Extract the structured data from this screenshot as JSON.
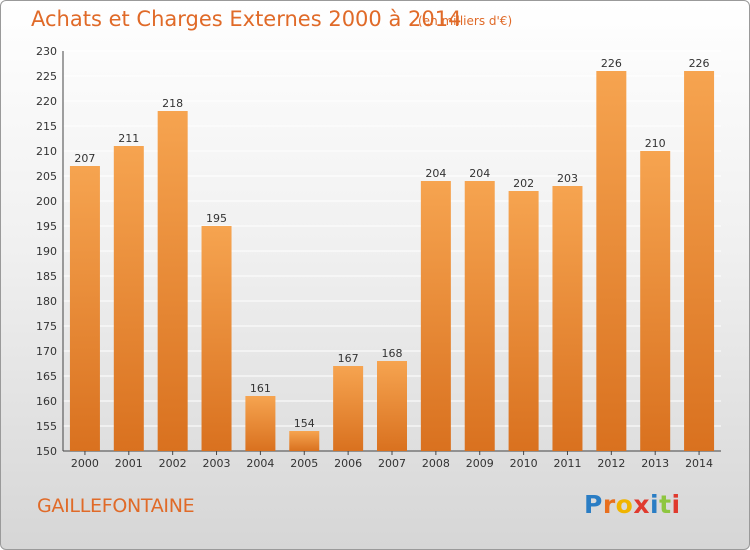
{
  "header": {
    "title": "Achats et Charges Externes 2000 à 2014",
    "unit": "(en milliers d'€)"
  },
  "footer": {
    "commune": "GAILLEFONTAINE",
    "logo_text": "Proxiti",
    "logo_colors": [
      "#2a7dc4",
      "#e86f1e",
      "#f0b400",
      "#e03a2e",
      "#2a7dc4",
      "#8ec63f",
      "#e03a2e"
    ]
  },
  "colors": {
    "bar_light": "#f6a450",
    "bar_dark": "#d9711f",
    "grid": "#ffffff",
    "accent": "#e06a28"
  },
  "chart_data": {
    "type": "bar",
    "title": "Achats et Charges Externes 2000 à 2014",
    "subtitle": "(en milliers d'€)",
    "categories": [
      "2000",
      "2001",
      "2002",
      "2003",
      "2004",
      "2005",
      "2006",
      "2007",
      "2008",
      "2009",
      "2010",
      "2011",
      "2012",
      "2013",
      "2014"
    ],
    "values": [
      207,
      211,
      218,
      195,
      161,
      154,
      167,
      168,
      204,
      204,
      202,
      203,
      226,
      210,
      226
    ],
    "ylim": [
      150,
      230
    ],
    "yticks": [
      150,
      155,
      160,
      165,
      170,
      175,
      180,
      185,
      190,
      195,
      200,
      205,
      210,
      215,
      220,
      225,
      230
    ],
    "grid": true,
    "xlabel": "",
    "ylabel": ""
  }
}
